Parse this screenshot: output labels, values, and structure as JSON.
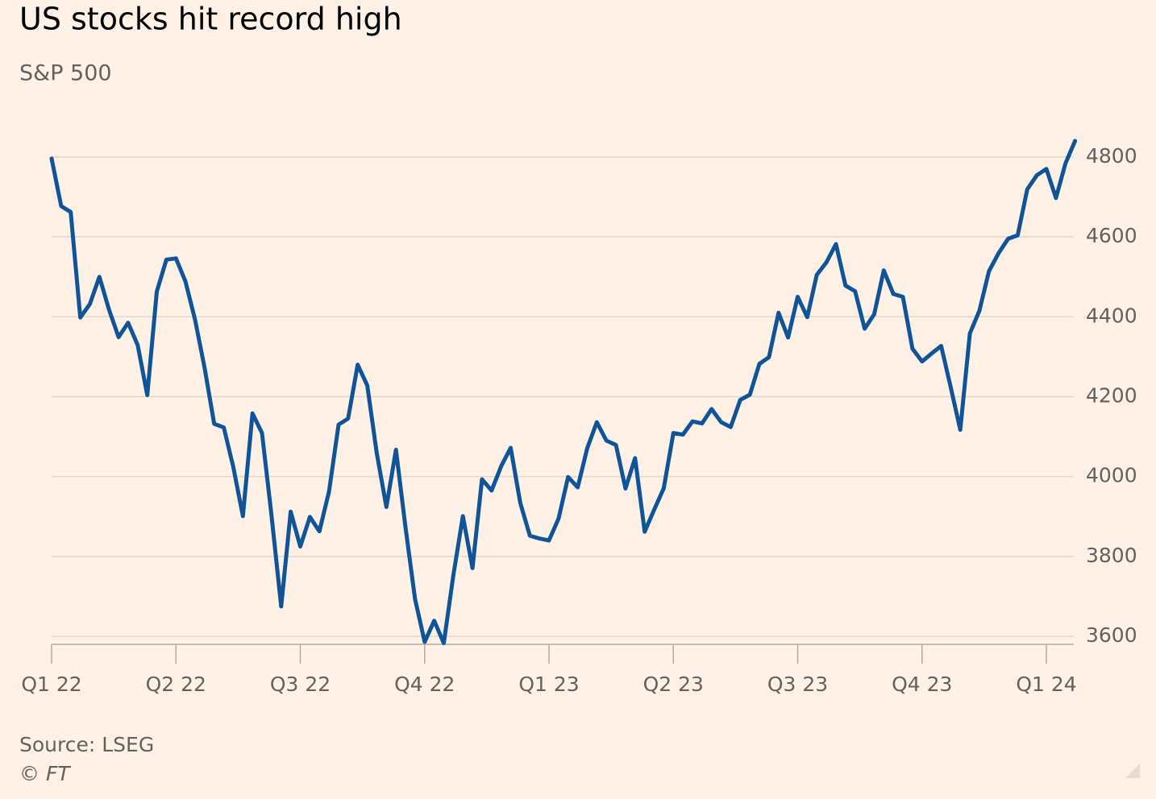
{
  "chart_data": {
    "type": "line",
    "title": "US stocks hit record high",
    "subtitle": "S&P 500",
    "source": "Source: LSEG",
    "credit": "© FT",
    "categories": [
      "Q1 22",
      null,
      null,
      null,
      null,
      null,
      null,
      null,
      null,
      null,
      null,
      null,
      null,
      "Q2 22",
      null,
      null,
      null,
      null,
      null,
      null,
      null,
      null,
      null,
      null,
      null,
      null,
      "Q3 22",
      null,
      null,
      null,
      null,
      null,
      null,
      null,
      null,
      null,
      null,
      null,
      null,
      "Q4 22",
      null,
      null,
      null,
      null,
      null,
      null,
      null,
      null,
      null,
      null,
      null,
      null,
      "Q1 23",
      null,
      null,
      null,
      null,
      null,
      null,
      null,
      null,
      null,
      null,
      null,
      null,
      "Q2 23",
      null,
      null,
      null,
      null,
      null,
      null,
      null,
      null,
      null,
      null,
      null,
      null,
      "Q3 23",
      null,
      null,
      null,
      null,
      null,
      null,
      null,
      null,
      null,
      null,
      null,
      null,
      "Q4 23",
      null,
      null,
      null,
      null,
      null,
      null,
      null,
      null,
      null,
      null,
      null,
      null,
      "Q1 24",
      null,
      null,
      null
    ],
    "series": [
      {
        "name": "S&P 500",
        "color": "#0f5499",
        "values": [
          4796,
          4677,
          4662,
          4398,
          4432,
          4500,
          4418,
          4349,
          4385,
          4329,
          4204,
          4463,
          4543,
          4546,
          4488,
          4392,
          4272,
          4132,
          4123,
          4024,
          3901,
          4158,
          4109,
          3901,
          3675,
          3912,
          3825,
          3899,
          3863,
          3962,
          4130,
          4145,
          4280,
          4228,
          4058,
          3924,
          4067,
          3873,
          3693,
          3586,
          3639,
          3583,
          3752,
          3901,
          3771,
          3993,
          3965,
          4026,
          4072,
          3934,
          3852,
          3845,
          3840,
          3895,
          3999,
          3973,
          4071,
          4136,
          4090,
          4079,
          3970,
          4046,
          3862,
          3917,
          3971,
          4109,
          4105,
          4138,
          4133,
          4169,
          4136,
          4124,
          4192,
          4205,
          4282,
          4299,
          4410,
          4348,
          4450,
          4399,
          4505,
          4536,
          4582,
          4478,
          4464,
          4370,
          4406,
          4516,
          4457,
          4450,
          4320,
          4288,
          4308,
          4327,
          4224,
          4117,
          4358,
          4415,
          4514,
          4559,
          4595,
          4604,
          4719,
          4754,
          4770,
          4697,
          4784,
          4840
        ]
      }
    ],
    "ylim": [
      3580,
      4840
    ],
    "yticks": [
      3600,
      3800,
      4000,
      4200,
      4400,
      4600,
      4800
    ],
    "grid": true
  }
}
